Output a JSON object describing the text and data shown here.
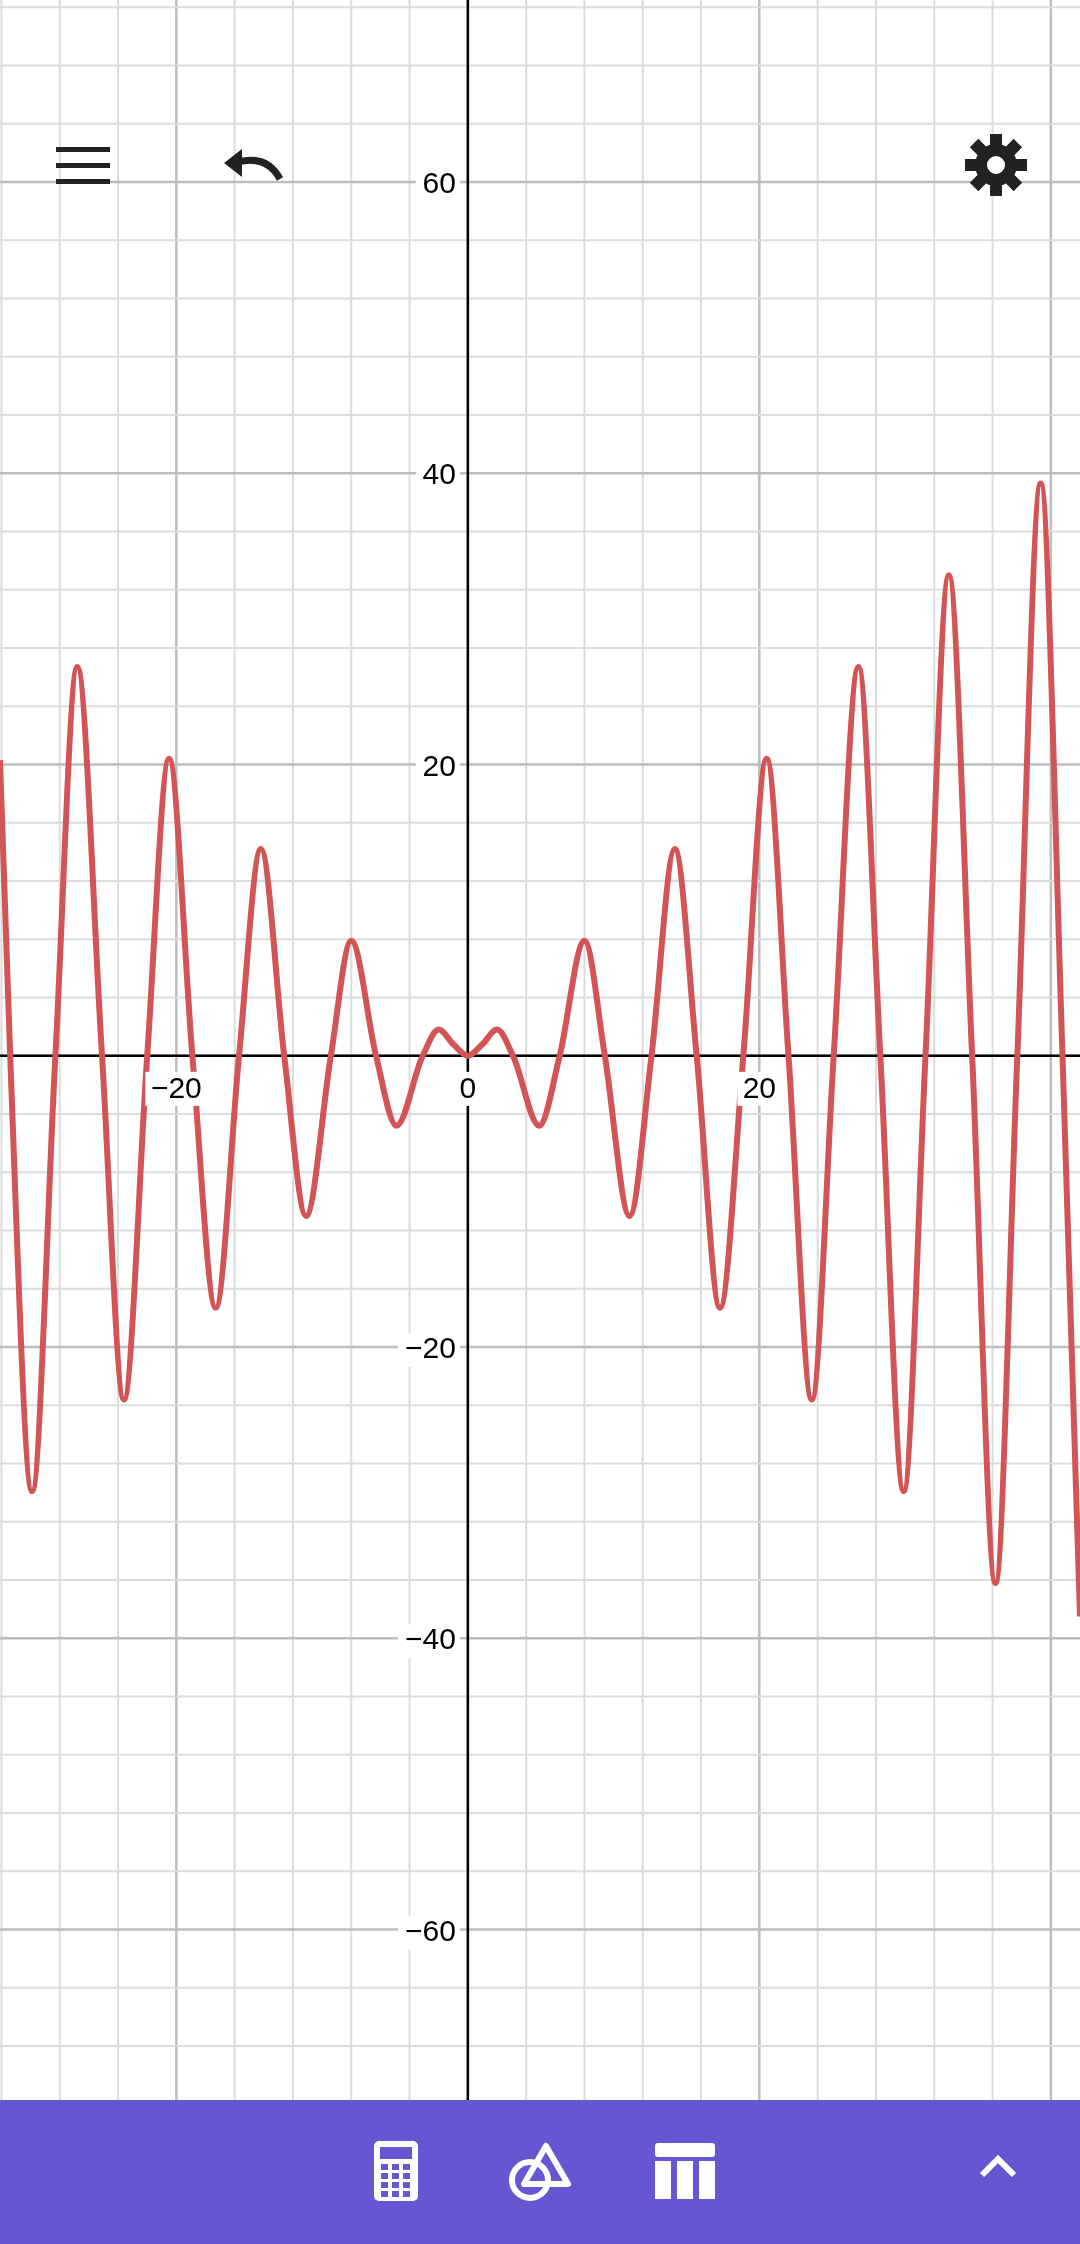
{
  "chart_data": {
    "type": "line",
    "x": [
      -32.1,
      -31.4,
      -29.9,
      -28.3,
      -26.8,
      -25.1,
      -23.6,
      -22,
      -20.5,
      -18.9,
      -17.3,
      -15.7,
      -14.2,
      -12.6,
      -11.1,
      -9.4,
      -8,
      -6.3,
      -4.9,
      -3.1,
      -2,
      -1,
      0,
      1,
      2,
      3.1,
      4.9,
      6.3,
      8,
      9.4,
      11.1,
      12.6,
      14.2,
      15.7,
      17.3,
      18.9,
      20.5,
      22,
      23.6,
      25.1,
      26.8,
      28.3,
      29.9,
      31.4,
      33,
      34.6,
      36.2,
      37.7,
      39.3,
      40.8,
      42
    ],
    "series": [
      {
        "color": "#d35454",
        "values": [
          20.3,
          0,
          -29.9,
          0,
          26.7,
          0,
          -23.6,
          0,
          20.4,
          0,
          -17.3,
          0,
          14.2,
          0,
          -11,
          0,
          7.9,
          0,
          -4.8,
          0,
          1.8,
          0.8,
          0,
          0.8,
          1.8,
          0,
          -4.8,
          0,
          7.9,
          0,
          -11,
          0,
          14.2,
          0,
          -17.3,
          0,
          20.4,
          0,
          -23.6,
          0,
          26.7,
          0,
          -29.9,
          0,
          33,
          0,
          -36.2,
          0,
          39.3,
          0,
          -38.5
        ]
      }
    ],
    "xlim": [
      -32.1,
      42
    ],
    "ylim": [
      -71.7,
      72.5
    ],
    "xticks": [
      {
        "value": -32,
        "label": null
      },
      {
        "value": -28,
        "label": null
      },
      {
        "value": -24,
        "label": null
      },
      {
        "value": -20,
        "label": "−20"
      },
      {
        "value": -16,
        "label": null
      },
      {
        "value": -12,
        "label": null
      },
      {
        "value": -8,
        "label": null
      },
      {
        "value": -4,
        "label": null
      },
      {
        "value": 0,
        "label": "0"
      },
      {
        "value": 4,
        "label": null
      },
      {
        "value": 8,
        "label": null
      },
      {
        "value": 12,
        "label": null
      },
      {
        "value": 16,
        "label": null
      },
      {
        "value": 20,
        "label": "20"
      },
      {
        "value": 24,
        "label": null
      },
      {
        "value": 28,
        "label": null
      },
      {
        "value": 32,
        "label": null
      },
      {
        "value": 36,
        "label": null
      },
      {
        "value": 40,
        "label": null
      }
    ],
    "yticks": [
      {
        "value": -68,
        "label": null
      },
      {
        "value": -64,
        "label": null
      },
      {
        "value": -60,
        "label": "−60"
      },
      {
        "value": -56,
        "label": null
      },
      {
        "value": -52,
        "label": null
      },
      {
        "value": -48,
        "label": null
      },
      {
        "value": -44,
        "label": null
      },
      {
        "value": -40,
        "label": "−40"
      },
      {
        "value": -36,
        "label": null
      },
      {
        "value": -32,
        "label": null
      },
      {
        "value": -28,
        "label": null
      },
      {
        "value": -24,
        "label": null
      },
      {
        "value": -20,
        "label": "−20"
      },
      {
        "value": -16,
        "label": null
      },
      {
        "value": -12,
        "label": null
      },
      {
        "value": -8,
        "label": null
      },
      {
        "value": -4,
        "label": null
      },
      {
        "value": 0,
        "label": null
      },
      {
        "value": 4,
        "label": null
      },
      {
        "value": 8,
        "label": null
      },
      {
        "value": 12,
        "label": null
      },
      {
        "value": 16,
        "label": null
      },
      {
        "value": 20,
        "label": "20"
      },
      {
        "value": 24,
        "label": null
      },
      {
        "value": 28,
        "label": null
      },
      {
        "value": 32,
        "label": null
      },
      {
        "value": 36,
        "label": null
      },
      {
        "value": 40,
        "label": "40"
      },
      {
        "value": 44,
        "label": null
      },
      {
        "value": 48,
        "label": null
      },
      {
        "value": 52,
        "label": null
      },
      {
        "value": 56,
        "label": null
      },
      {
        "value": 60,
        "label": "60"
      },
      {
        "value": 64,
        "label": null
      },
      {
        "value": 68,
        "label": null
      },
      {
        "value": 72,
        "label": null
      }
    ],
    "grid": true,
    "line_style": "solid"
  }
}
